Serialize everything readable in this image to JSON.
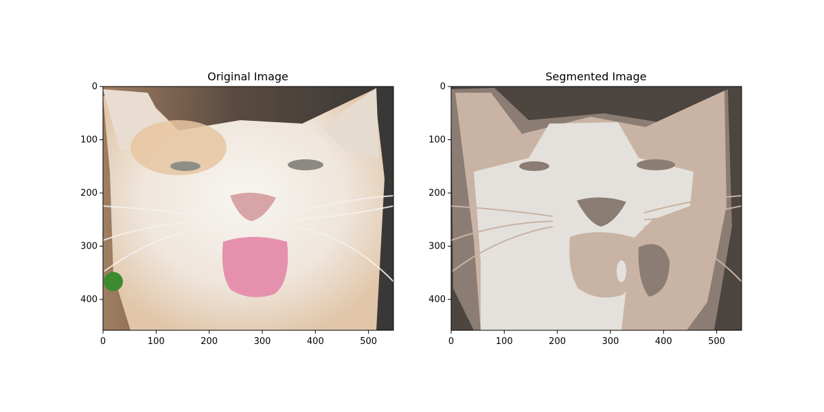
{
  "panels": [
    {
      "title": "Original Image",
      "image_kind": "photo",
      "x_ticks": [
        0,
        100,
        200,
        300,
        400,
        500
      ],
      "y_ticks": [
        0,
        100,
        200,
        300,
        400
      ],
      "x_range": [
        0,
        547
      ],
      "y_range": [
        0,
        458
      ]
    },
    {
      "title": "Segmented Image",
      "image_kind": "segmented",
      "x_ticks": [
        0,
        100,
        200,
        300,
        400,
        500
      ],
      "y_ticks": [
        0,
        100,
        200,
        300,
        400
      ],
      "x_range": [
        0,
        547
      ],
      "y_range": [
        0,
        458
      ]
    }
  ],
  "segment_colors": [
    "#4d453f",
    "#8b7d73",
    "#c9b3a4",
    "#e4e1dc"
  ],
  "photo_colors": {
    "background_top": "#4a413a",
    "background_left": "#9b7a5f",
    "background_right": "#3a3a38",
    "fur_white": "#f2efea",
    "fur_orange": "#e8c9a8",
    "nose": "#d9a7a8",
    "tongue": "#e58fae",
    "eye": "#8d8f86"
  }
}
